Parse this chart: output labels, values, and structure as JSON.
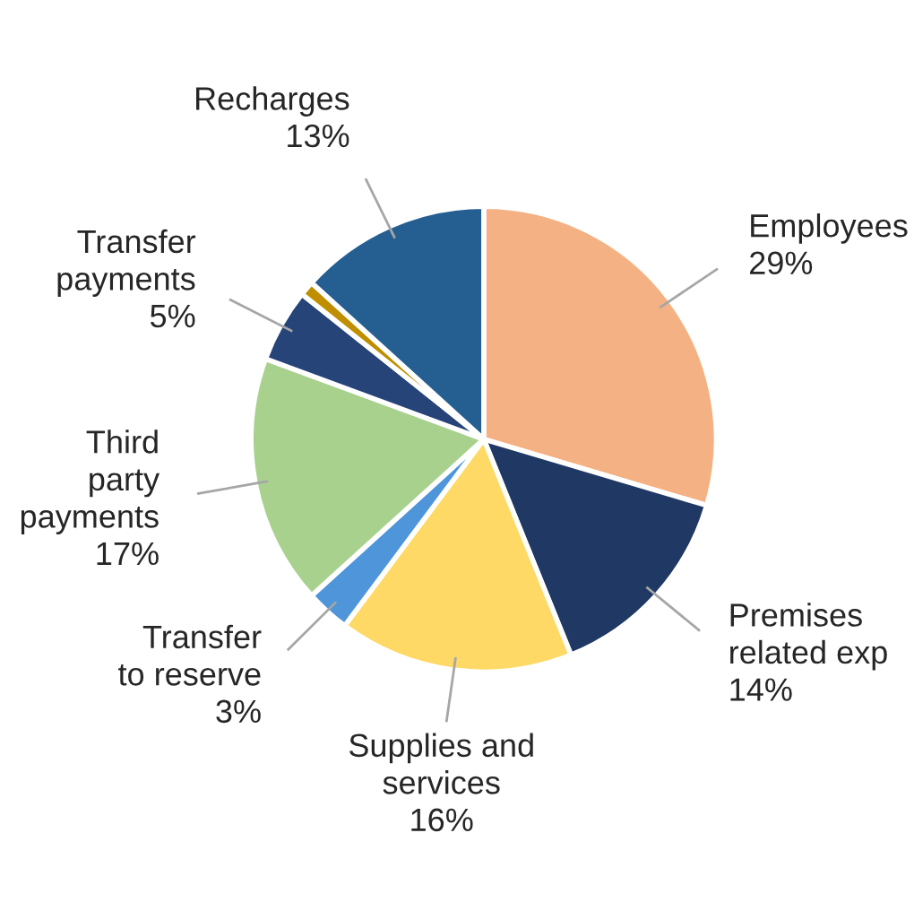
{
  "chart_data": {
    "type": "pie",
    "categories": [
      "Employees",
      "Premises\nrelated exp",
      "Supplies and\nservices",
      "Transfer\nto reserve",
      "Third\nparty\npayments",
      "Transfer\npayments",
      null,
      "Recharges"
    ],
    "values": [
      29,
      14,
      16,
      3,
      17,
      5,
      1,
      13
    ],
    "value_labels": [
      "29%",
      "14%",
      "16%",
      "3%",
      "17%",
      "5%",
      null,
      "13%"
    ],
    "colors": [
      "#f4b183",
      "#1f3864",
      "#ffd966",
      "#4e95d9",
      "#a9d18e",
      "#264478",
      "#bf8f00",
      "#255e91"
    ],
    "legend": false
  }
}
